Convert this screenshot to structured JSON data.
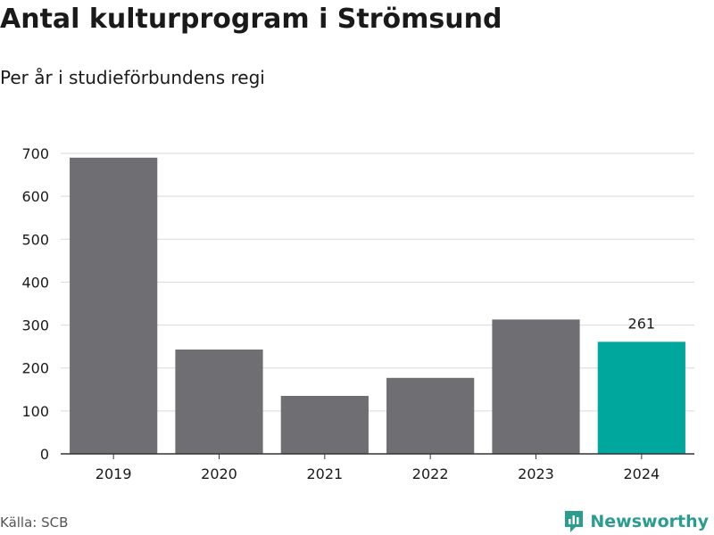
{
  "header": {
    "title": "Antal kulturprogram i Strömsund",
    "subtitle": "Per år i studieförbundens regi"
  },
  "footer": {
    "source": "Källa: SCB",
    "brand": "Newsworthy",
    "brand_icon": "newsworthy-logo-icon"
  },
  "colors": {
    "bar": "#6f6e73",
    "highlight": "#00a79c",
    "grid": "#d9d9d9",
    "axis": "#333333",
    "brand": "#2a9d8f"
  },
  "chart_data": {
    "type": "bar",
    "categories": [
      "2019",
      "2020",
      "2021",
      "2022",
      "2023",
      "2024"
    ],
    "values": [
      690,
      243,
      135,
      177,
      313,
      261
    ],
    "highlight_index": 5,
    "data_labels": [
      {
        "index": 5,
        "text": "261"
      }
    ],
    "ylim": [
      0,
      700
    ],
    "yticks": [
      0,
      100,
      200,
      300,
      400,
      500,
      600,
      700
    ],
    "grid": true,
    "legend": "none",
    "title": "Antal kulturprogram i Strömsund",
    "subtitle": "Per år i studieförbundens regi"
  }
}
